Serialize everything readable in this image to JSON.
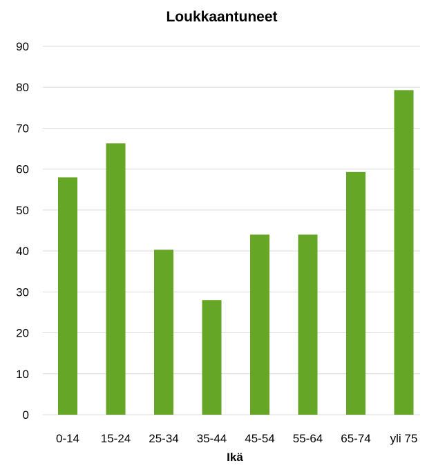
{
  "chart_data": {
    "type": "bar",
    "title": "Loukkaantuneet",
    "xlabel": "Ikä",
    "ylabel": "",
    "categories": [
      "0-14",
      "15-24",
      "25-34",
      "35-44",
      "45-54",
      "55-64",
      "65-74",
      "yli 75"
    ],
    "values": [
      58,
      66.3,
      40.3,
      28,
      44,
      44,
      59.3,
      79.3
    ],
    "ylim": [
      0,
      90
    ],
    "yticks": [
      "0",
      "10",
      "20",
      "30",
      "40",
      "50",
      "60",
      "70",
      "80",
      "90"
    ],
    "grid": true,
    "legend": "none",
    "bar_color": "#66a626",
    "grid_color": "#d9d9d9"
  }
}
